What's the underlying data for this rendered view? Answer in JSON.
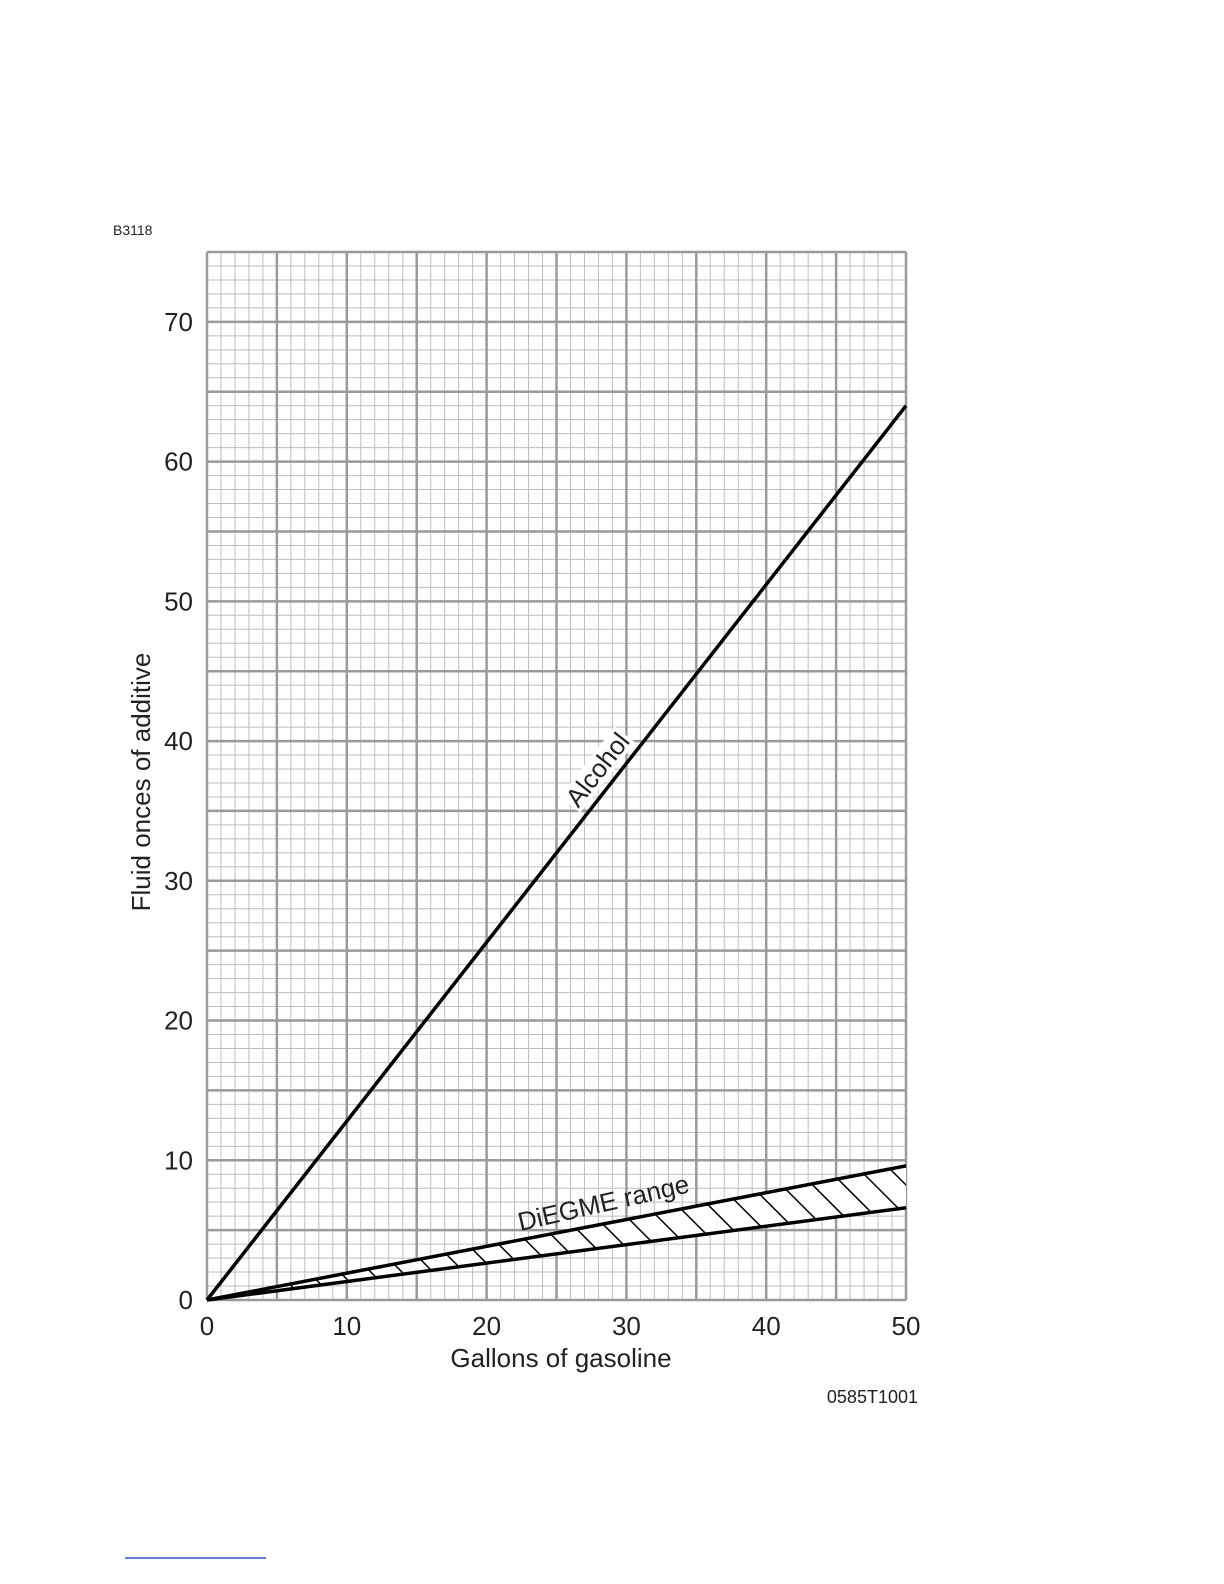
{
  "chart_data": {
    "type": "line",
    "code_top": "B3118",
    "code_bottom": "0585T1001",
    "x_label": "Gallons of gasoline",
    "y_label": "Fluid onces of additive",
    "x": [
      0,
      50
    ],
    "series": [
      {
        "name": "Alcohol",
        "color": "#000000",
        "values": [
          0,
          64
        ]
      }
    ],
    "bands": [
      {
        "name": "DiEGME range",
        "color": "#000000",
        "upper": [
          0,
          9.6
        ],
        "lower": [
          0,
          6.6
        ]
      }
    ],
    "xlim": [
      0,
      50
    ],
    "ylim": [
      0,
      75
    ],
    "xticks": [
      0,
      10,
      20,
      30,
      40,
      50
    ],
    "yticks": [
      0,
      10,
      20,
      30,
      40,
      50,
      60,
      70
    ],
    "grid": true,
    "grid_major_step": 5,
    "grid_minor_step": 1
  }
}
